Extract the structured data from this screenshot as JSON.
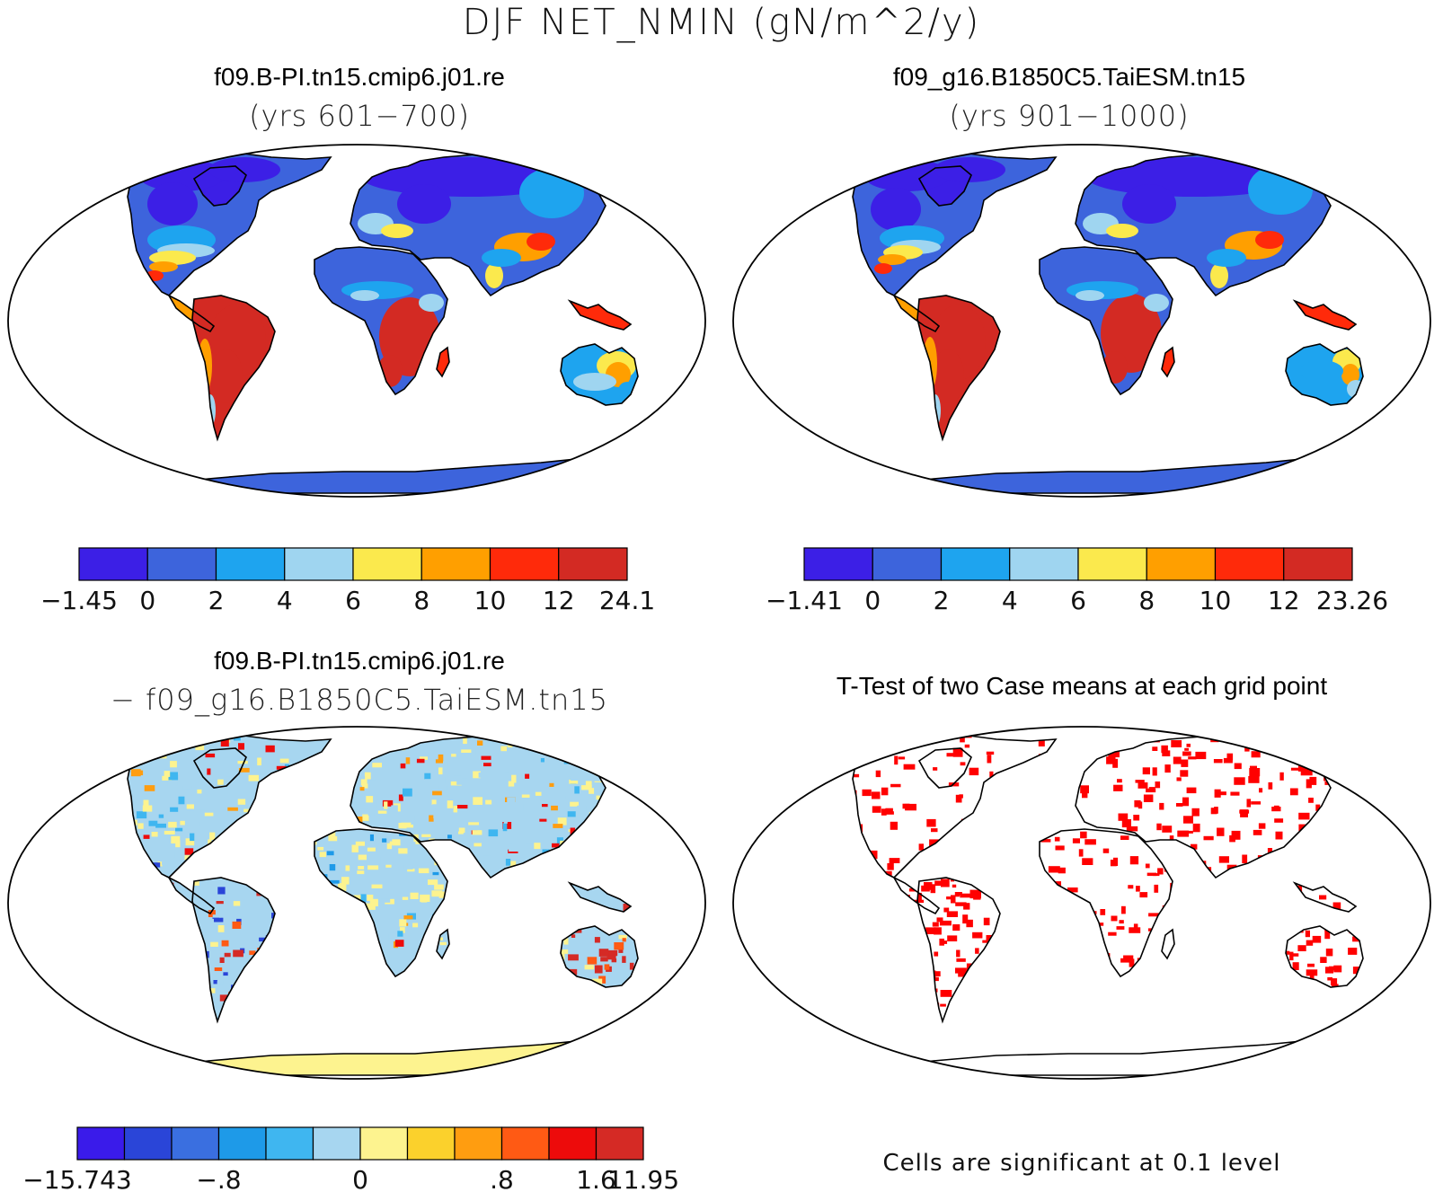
{
  "title": "DJF NET_NMIN (gN/m^2/y)",
  "panels": [
    {
      "id": "case1",
      "title": "f09.B-PI.tn15.cmip6.j01.re",
      "subtitle": "(yrs 601−700)",
      "colorbar": {
        "colors": [
          "#3c1fe6",
          "#3d64dc",
          "#1ea4ef",
          "#9fd5f0",
          "#fbe94d",
          "#ff9f00",
          "#ff2a0a",
          "#d32a23"
        ],
        "labels": [
          "−1.45",
          "0",
          "2",
          "4",
          "6",
          "8",
          "10",
          "12",
          "24.1"
        ]
      }
    },
    {
      "id": "case2",
      "title": "f09_g16.B1850C5.TaiESM.tn15",
      "subtitle": "(yrs 901−1000)",
      "colorbar": {
        "colors": [
          "#3c1fe6",
          "#3d64dc",
          "#1ea4ef",
          "#9fd5f0",
          "#fbe94d",
          "#ff9f00",
          "#ff2a0a",
          "#d32a23"
        ],
        "labels": [
          "−1.41",
          "0",
          "2",
          "4",
          "6",
          "8",
          "10",
          "12",
          "23.26"
        ]
      }
    },
    {
      "id": "diff",
      "title": "f09.B-PI.tn15.cmip6.j01.re",
      "subtitle": "− f09_g16.B1850C5.TaiESM.tn15",
      "colorbar": {
        "colors": [
          "#3a1bea",
          "#2a45d8",
          "#3a6fe0",
          "#1e9ae8",
          "#3fb6f0",
          "#a7d6f0",
          "#fdf38f",
          "#fbd12c",
          "#ff9d10",
          "#ff5a14",
          "#ed0b0b",
          "#d52a25"
        ],
        "labels": [
          "−15.743",
          "",
          "",
          "−.8",
          "",
          "",
          "0",
          "",
          "",
          ".8",
          "",
          "1.6",
          "11.95"
        ]
      }
    },
    {
      "id": "ttest",
      "title": "T-Test of two Case means at each grid point",
      "footnote": "Cells are significant at 0.1 level",
      "color": "#ff0000"
    }
  ]
}
